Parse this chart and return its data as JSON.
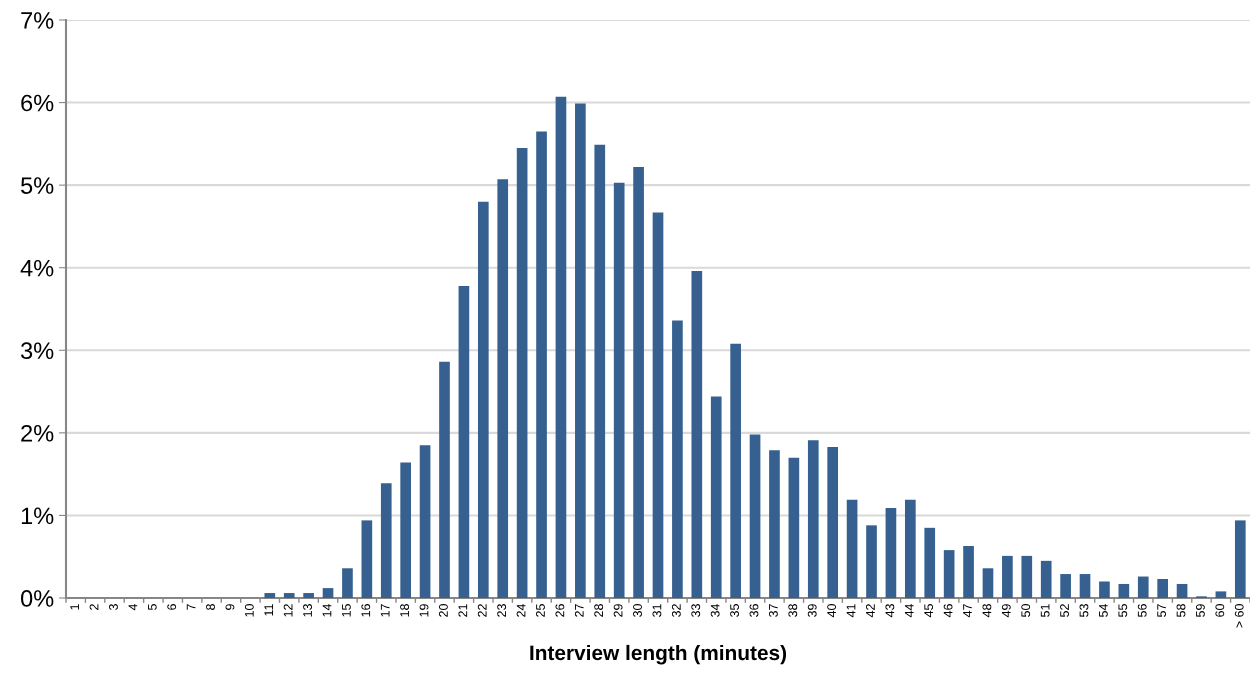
{
  "chart_data": {
    "type": "bar",
    "xlabel": "Interview length (minutes)",
    "categories": [
      "1",
      "2",
      "3",
      "4",
      "5",
      "6",
      "7",
      "8",
      "9",
      "10",
      "11",
      "12",
      "13",
      "14",
      "15",
      "16",
      "17",
      "18",
      "19",
      "20",
      "21",
      "22",
      "23",
      "24",
      "25",
      "26",
      "27",
      "28",
      "29",
      "30",
      "31",
      "32",
      "33",
      "34",
      "35",
      "36",
      "37",
      "38",
      "39",
      "40",
      "41",
      "42",
      "43",
      "44",
      "45",
      "46",
      "47",
      "48",
      "49",
      "50",
      "51",
      "52",
      "53",
      "54",
      "55",
      "56",
      "57",
      "58",
      "59",
      "60",
      "> 60"
    ],
    "values": [
      0,
      0,
      0,
      0,
      0,
      0,
      0,
      0,
      0,
      0,
      0.06,
      0.06,
      0.06,
      0.12,
      0.36,
      0.94,
      1.39,
      1.64,
      1.85,
      2.86,
      3.78,
      4.8,
      5.07,
      5.45,
      5.65,
      6.07,
      5.99,
      5.49,
      5.03,
      5.22,
      4.67,
      3.36,
      3.96,
      2.44,
      3.08,
      1.98,
      1.79,
      1.7,
      1.91,
      1.83,
      1.19,
      0.88,
      1.09,
      1.19,
      0.85,
      0.58,
      0.63,
      0.36,
      0.51,
      0.51,
      0.45,
      0.29,
      0.29,
      0.2,
      0.17,
      0.26,
      0.23,
      0.17,
      0.02,
      0.08,
      0.94
    ],
    "color": "#36608f",
    "ylim": [
      0,
      7
    ],
    "yticks": [
      {
        "value": 0,
        "label": "0%"
      },
      {
        "value": 1,
        "label": "1%"
      },
      {
        "value": 2,
        "label": "2%"
      },
      {
        "value": 3,
        "label": "3%"
      },
      {
        "value": 4,
        "label": "4%"
      },
      {
        "value": 5,
        "label": "5%"
      },
      {
        "value": 6,
        "label": "6%"
      },
      {
        "value": 7,
        "label": "7%"
      }
    ],
    "grid": "y",
    "legend": false
  }
}
